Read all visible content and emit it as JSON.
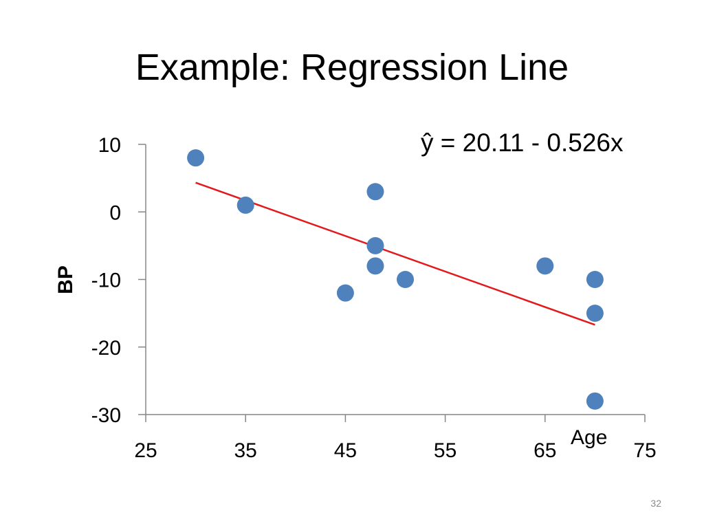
{
  "slide": {
    "title": "Example:  Regression Line",
    "page_number": "32"
  },
  "chart_data": {
    "type": "scatter",
    "xlabel": "Age",
    "ylabel": "BP",
    "xlim": [
      25,
      75
    ],
    "ylim": [
      -30,
      10
    ],
    "x_ticks": [
      25,
      35,
      45,
      55,
      65,
      75
    ],
    "y_ticks": [
      10,
      0,
      -10,
      -20,
      -30
    ],
    "grid": false,
    "points": [
      {
        "x": 30,
        "y": 8
      },
      {
        "x": 35,
        "y": 1
      },
      {
        "x": 45,
        "y": -12
      },
      {
        "x": 48,
        "y": 3
      },
      {
        "x": 48,
        "y": -5
      },
      {
        "x": 48,
        "y": -8
      },
      {
        "x": 51,
        "y": -10
      },
      {
        "x": 65,
        "y": -8
      },
      {
        "x": 70,
        "y": -10
      },
      {
        "x": 70,
        "y": -15
      },
      {
        "x": 70,
        "y": -28
      }
    ],
    "regression": {
      "equation": "ŷ = 20.11 - 0.526x",
      "intercept": 20.11,
      "slope": -0.526,
      "x_range": [
        30,
        70
      ]
    },
    "colors": {
      "points": "#4f81bd",
      "regression_line": "#e31a1c",
      "axis": "#868686"
    }
  }
}
